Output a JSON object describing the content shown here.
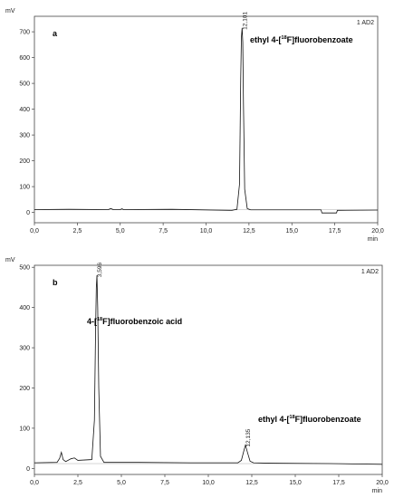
{
  "chart_data": [
    {
      "type": "line",
      "panel_label": "a",
      "channel": "1 AD2",
      "y_unit": "mV",
      "x_unit": "min",
      "xlim": [
        0,
        20
      ],
      "ylim": [
        -40,
        760
      ],
      "x_ticks": [
        "0,0",
        "2,5",
        "5,0",
        "7,5",
        "10,0",
        "12,5",
        "15,0",
        "17,5",
        "20,0"
      ],
      "y_ticks": [
        "0",
        "100",
        "200",
        "300",
        "400",
        "500",
        "600",
        "700"
      ],
      "annotation": {
        "pre": "ethyl 4-[",
        "sup": "18",
        "post": "F]fluorobenzoate"
      },
      "peaks": [
        {
          "time": 12.101,
          "label": "12,101",
          "height": 715
        }
      ],
      "baseline": 10,
      "series": [
        {
          "x": [
            0.0,
            2.0,
            4.3,
            4.45,
            4.6,
            5.0,
            5.1,
            5.2,
            8.0,
            11.5,
            11.8,
            11.95,
            12.02,
            12.06,
            12.101,
            12.14,
            12.18,
            12.25,
            12.4,
            12.6,
            12.8,
            15.0,
            16.7,
            16.75,
            17.6,
            17.65,
            20.0
          ],
          "y": [
            11,
            12,
            11,
            15,
            11,
            11,
            14,
            11,
            12,
            8,
            12,
            110,
            520,
            680,
            715,
            660,
            420,
            90,
            15,
            10,
            10,
            10,
            10,
            -2,
            -2,
            8,
            9
          ]
        }
      ]
    },
    {
      "type": "line",
      "panel_label": "b",
      "channel": "1 AD2",
      "y_unit": "mV",
      "x_unit": "min",
      "xlim": [
        0,
        20
      ],
      "ylim": [
        -15,
        505
      ],
      "x_ticks": [
        "0,0",
        "2,5",
        "5,0",
        "7,5",
        "10,0",
        "12,5",
        "15,0",
        "17,5",
        "20,0"
      ],
      "y_ticks": [
        "0",
        "100",
        "200",
        "300",
        "400",
        "500"
      ],
      "annotations": [
        {
          "pre": "4-[",
          "sup": "18",
          "post": "F]fluorobenzoic acid"
        },
        {
          "pre": "ethyl 4-[",
          "sup": "18",
          "post": "F]fluorobenzoate"
        }
      ],
      "peaks": [
        {
          "time": 3.596,
          "label": "3,596",
          "height": 480
        },
        {
          "time": 12.135,
          "label": "12,135",
          "height": 58
        }
      ],
      "baseline": 12,
      "series": [
        {
          "x": [
            0.0,
            1.3,
            1.45,
            1.55,
            1.65,
            1.8,
            2.1,
            2.3,
            2.5,
            3.3,
            3.45,
            3.52,
            3.56,
            3.596,
            3.64,
            3.7,
            3.8,
            4.0,
            6.0,
            9.0,
            11.7,
            11.9,
            12.05,
            12.135,
            12.25,
            12.4,
            12.6,
            13.5,
            17.0,
            20.0
          ],
          "y": [
            14,
            15,
            25,
            40,
            22,
            17,
            24,
            26,
            20,
            22,
            120,
            350,
            450,
            480,
            400,
            200,
            30,
            15,
            15,
            14,
            14,
            20,
            45,
            58,
            40,
            18,
            14,
            13,
            12,
            10
          ]
        }
      ]
    }
  ]
}
